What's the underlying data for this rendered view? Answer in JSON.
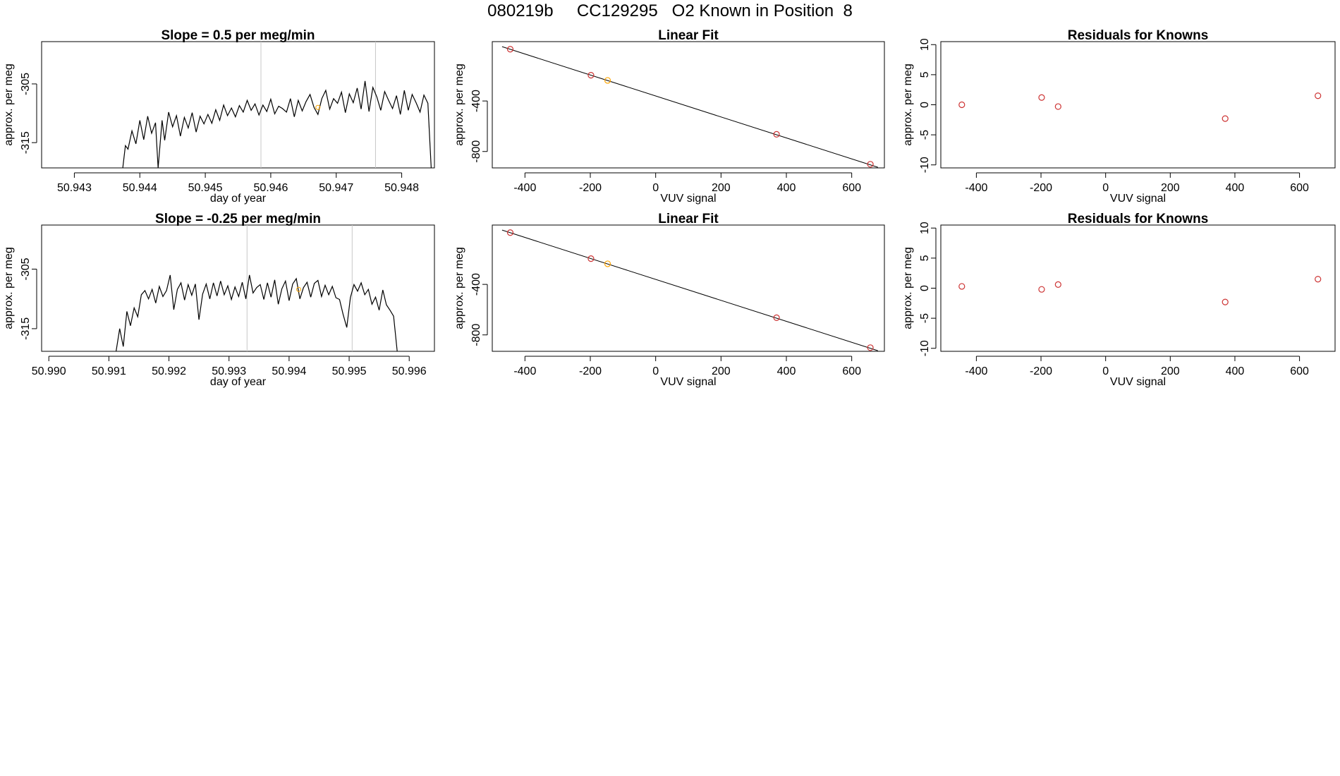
{
  "title": "080219b     CC129295   O2 Known in Position  8",
  "chart_data": [
    {
      "type": "line",
      "title": "Slope =  0.5  per meg/min",
      "xlabel": "day of year",
      "ylabel": "approx. per meg",
      "xlim": [
        50.9425,
        50.9485
      ],
      "ylim": [
        -319.3,
        -297.8
      ],
      "xticks": [
        "50.943",
        "50.944",
        "50.945",
        "50.946",
        "50.947",
        "50.948"
      ],
      "xtick_values": [
        50.943,
        50.944,
        50.945,
        50.946,
        50.947,
        50.948
      ],
      "yticks": [
        "-305",
        "-315"
      ],
      "ytick_values": [
        -305,
        -315
      ],
      "vlines": [
        50.94585,
        50.9476
      ],
      "highlight_point": {
        "x": 50.94672,
        "y": -309.0,
        "color": "#ffa500"
      },
      "line_color": "#000000",
      "grid": false,
      "series": [
        {
          "x": [
            50.94374,
            50.94378,
            50.94382,
            50.94388,
            50.94394,
            50.944,
            50.94406,
            50.94412,
            50.94418,
            50.94424,
            50.94428,
            50.94434,
            50.94438,
            50.94444,
            50.9445,
            50.94456,
            50.94462,
            50.94468,
            50.94474,
            50.9448,
            50.94486,
            50.94492,
            50.94498,
            50.94504,
            50.9451,
            50.94516,
            50.94522,
            50.94528,
            50.94534,
            50.9454,
            50.94546,
            50.94552,
            50.94558,
            50.94564,
            50.9457,
            50.94576,
            50.94582,
            50.94588,
            50.94594,
            50.946,
            50.94606,
            50.94612,
            50.94618,
            50.94624,
            50.9463,
            50.94636,
            50.94642,
            50.94648,
            50.94654,
            50.9466,
            50.94666,
            50.94672,
            50.94678,
            50.94684,
            50.9469,
            50.94696,
            50.94702,
            50.94708,
            50.94714,
            50.9472,
            50.94726,
            50.94732,
            50.94738,
            50.94744,
            50.9475,
            50.94756,
            50.94762,
            50.94768,
            50.94774,
            50.9478,
            50.94786,
            50.94792,
            50.94798,
            50.94804,
            50.9481,
            50.94816,
            50.94822,
            50.94828,
            50.94834,
            50.9484,
            50.94845
          ],
          "values": [
            -319.3,
            -315.5,
            -316.1,
            -313.0,
            -315.2,
            -311.2,
            -314.5,
            -310.5,
            -313.4,
            -311.6,
            -319.3,
            -311.2,
            -314.6,
            -309.8,
            -312.3,
            -310.4,
            -313.9,
            -310.7,
            -312.5,
            -309.9,
            -313.2,
            -310.5,
            -311.8,
            -310.2,
            -311.7,
            -309.4,
            -311.2,
            -308.6,
            -310.4,
            -309.1,
            -310.6,
            -308.7,
            -309.8,
            -307.8,
            -309.5,
            -308.4,
            -310.3,
            -308.6,
            -309.7,
            -307.6,
            -310.1,
            -308.8,
            -309.2,
            -309.8,
            -307.5,
            -310.6,
            -307.8,
            -309.6,
            -308.0,
            -306.8,
            -309.0,
            -310.2,
            -307.5,
            -306.1,
            -309.3,
            -307.5,
            -308.3,
            -306.4,
            -309.9,
            -306.7,
            -308.2,
            -305.7,
            -309.3,
            -304.5,
            -309.7,
            -305.6,
            -307.2,
            -309.5,
            -306.3,
            -307.8,
            -309.2,
            -307.0,
            -310.2,
            -306.1,
            -309.5,
            -306.8,
            -308.2,
            -309.8,
            -306.9,
            -308.3,
            -319.3
          ]
        }
      ]
    },
    {
      "type": "scatter",
      "title": "Linear Fit",
      "xlabel": "VUV signal",
      "ylabel": "approx. per meg",
      "xlim": [
        -500,
        700
      ],
      "ylim": [
        -930,
        70
      ],
      "xticks": [
        "-400",
        "-200",
        "0",
        "200",
        "400",
        "600"
      ],
      "xtick_values": [
        -400,
        -200,
        0,
        200,
        400,
        600
      ],
      "yticks": [
        "-400",
        "-800"
      ],
      "ytick_values": [
        -400,
        -800
      ],
      "fit_line": {
        "x1": -470,
        "y1": 30,
        "x2": 680,
        "y2": -925
      },
      "points": [
        {
          "x": -445,
          "y": 10,
          "color": "#cd3333"
        },
        {
          "x": -198,
          "y": -196,
          "color": "#cd3333"
        },
        {
          "x": -147,
          "y": -237,
          "color": "#ffa500"
        },
        {
          "x": 370,
          "y": -664,
          "color": "#cd3333"
        },
        {
          "x": 657,
          "y": -901,
          "color": "#cd3333"
        }
      ]
    },
    {
      "type": "scatter",
      "title": "Residuals for Knowns",
      "xlabel": "VUV signal",
      "ylabel": "approx. per meg",
      "xlim": [
        -510,
        710
      ],
      "ylim": [
        -10.5,
        10.5
      ],
      "xticks": [
        "-400",
        "-200",
        "0",
        "200",
        "400",
        "600"
      ],
      "xtick_values": [
        -400,
        -200,
        0,
        200,
        400,
        600
      ],
      "yticks": [
        "10",
        "5",
        "0",
        "-5",
        "-10"
      ],
      "ytick_values": [
        10,
        5,
        0,
        -5,
        -10
      ],
      "points": [
        {
          "x": -445,
          "y": 0.0,
          "color": "#cd3333"
        },
        {
          "x": -198,
          "y": 1.2,
          "color": "#cd3333"
        },
        {
          "x": -147,
          "y": -0.3,
          "color": "#cd3333"
        },
        {
          "x": 370,
          "y": -2.3,
          "color": "#cd3333"
        },
        {
          "x": 657,
          "y": 1.5,
          "color": "#cd3333"
        }
      ]
    },
    {
      "type": "line",
      "title": "Slope =  -0.25  per meg/min",
      "xlabel": "day of year",
      "ylabel": "approx. per meg",
      "xlim": [
        50.98988,
        50.99642
      ],
      "ylim": [
        -318.8,
        -297.6
      ],
      "xticks": [
        "50.990",
        "50.991",
        "50.992",
        "50.993",
        "50.994",
        "50.995",
        "50.996"
      ],
      "xtick_values": [
        50.99,
        50.991,
        50.992,
        50.993,
        50.994,
        50.995,
        50.996
      ],
      "yticks": [
        "-305",
        "-315"
      ],
      "ytick_values": [
        -305,
        -315
      ],
      "vlines": [
        50.9933,
        50.99505
      ],
      "highlight_point": {
        "x": 50.99416,
        "y": -308.4,
        "color": "#ffa500"
      },
      "line_color": "#000000",
      "grid": false,
      "series": [
        {
          "x": [
            50.99112,
            50.99118,
            50.99124,
            50.9913,
            50.99136,
            50.99142,
            50.99148,
            50.99154,
            50.9916,
            50.99166,
            50.99172,
            50.99178,
            50.99184,
            50.9919,
            50.99196,
            50.99202,
            50.99208,
            50.99214,
            50.9922,
            50.99226,
            50.99232,
            50.99238,
            50.99244,
            50.9925,
            50.99256,
            50.99262,
            50.99268,
            50.99274,
            50.9928,
            50.99286,
            50.99292,
            50.99298,
            50.99304,
            50.9931,
            50.99316,
            50.99322,
            50.99328,
            50.99334,
            50.9934,
            50.99346,
            50.99352,
            50.99358,
            50.99364,
            50.9937,
            50.99376,
            50.99382,
            50.99388,
            50.99394,
            50.994,
            50.99406,
            50.99412,
            50.99418,
            50.99424,
            50.9943,
            50.99436,
            50.99442,
            50.99448,
            50.99454,
            50.9946,
            50.99466,
            50.99472,
            50.99478,
            50.99484,
            50.9949,
            50.99496,
            50.99502,
            50.99508,
            50.99514,
            50.9952,
            50.99526,
            50.99532,
            50.99538,
            50.99544,
            50.9955,
            50.99556,
            50.99562,
            50.99568,
            50.99574,
            50.9958
          ],
          "values": [
            -318.8,
            -315.0,
            -318.0,
            -312.1,
            -314.5,
            -311.5,
            -313.0,
            -309.3,
            -308.6,
            -310.0,
            -308.4,
            -310.7,
            -307.9,
            -309.6,
            -308.6,
            -306.0,
            -311.8,
            -308.4,
            -307.3,
            -310.2,
            -307.6,
            -309.4,
            -307.5,
            -313.5,
            -309.2,
            -307.5,
            -310.0,
            -307.3,
            -309.5,
            -307.0,
            -309.3,
            -307.8,
            -310.1,
            -308.0,
            -309.6,
            -307.2,
            -310.0,
            -306.0,
            -309.0,
            -308.1,
            -307.6,
            -310.1,
            -307.3,
            -309.7,
            -306.8,
            -310.9,
            -308.3,
            -307.0,
            -310.3,
            -307.5,
            -306.6,
            -310.0,
            -308.1,
            -307.2,
            -309.7,
            -307.4,
            -306.9,
            -309.6,
            -307.7,
            -309.3,
            -307.9,
            -309.8,
            -310.1,
            -312.6,
            -314.8,
            -309.8,
            -307.6,
            -308.7,
            -307.3,
            -309.3,
            -308.4,
            -310.9,
            -309.7,
            -311.9,
            -308.5,
            -311.0,
            -311.9,
            -312.9,
            -318.8
          ]
        }
      ]
    },
    {
      "type": "scatter",
      "title": "Linear Fit",
      "xlabel": "VUV signal",
      "ylabel": "approx. per meg",
      "xlim": [
        -500,
        700
      ],
      "ylim": [
        -930,
        70
      ],
      "xticks": [
        "-400",
        "-200",
        "0",
        "200",
        "400",
        "600"
      ],
      "xtick_values": [
        -400,
        -200,
        0,
        200,
        400,
        600
      ],
      "yticks": [
        "-400",
        "-800"
      ],
      "ytick_values": [
        -400,
        -800
      ],
      "fit_line": {
        "x1": -470,
        "y1": 30,
        "x2": 680,
        "y2": -925
      },
      "points": [
        {
          "x": -445,
          "y": 10,
          "color": "#cd3333"
        },
        {
          "x": -198,
          "y": -196,
          "color": "#cd3333"
        },
        {
          "x": -147,
          "y": -237,
          "color": "#ffa500"
        },
        {
          "x": 370,
          "y": -664,
          "color": "#cd3333"
        },
        {
          "x": 657,
          "y": -901,
          "color": "#cd3333"
        }
      ]
    },
    {
      "type": "scatter",
      "title": "Residuals for Knowns",
      "xlabel": "VUV signal",
      "ylabel": "approx. per meg",
      "xlim": [
        -510,
        710
      ],
      "ylim": [
        -10.5,
        10.5
      ],
      "xticks": [
        "-400",
        "-200",
        "0",
        "200",
        "400",
        "600"
      ],
      "xtick_values": [
        -400,
        -200,
        0,
        200,
        400,
        600
      ],
      "yticks": [
        "10",
        "5",
        "0",
        "-5",
        "-10"
      ],
      "ytick_values": [
        10,
        5,
        0,
        -5,
        -10
      ],
      "points": [
        {
          "x": -445,
          "y": 0.3,
          "color": "#cd3333"
        },
        {
          "x": -198,
          "y": -0.2,
          "color": "#cd3333"
        },
        {
          "x": -147,
          "y": 0.6,
          "color": "#cd3333"
        },
        {
          "x": 370,
          "y": -2.3,
          "color": "#cd3333"
        },
        {
          "x": 657,
          "y": 1.5,
          "color": "#cd3333"
        }
      ]
    }
  ]
}
